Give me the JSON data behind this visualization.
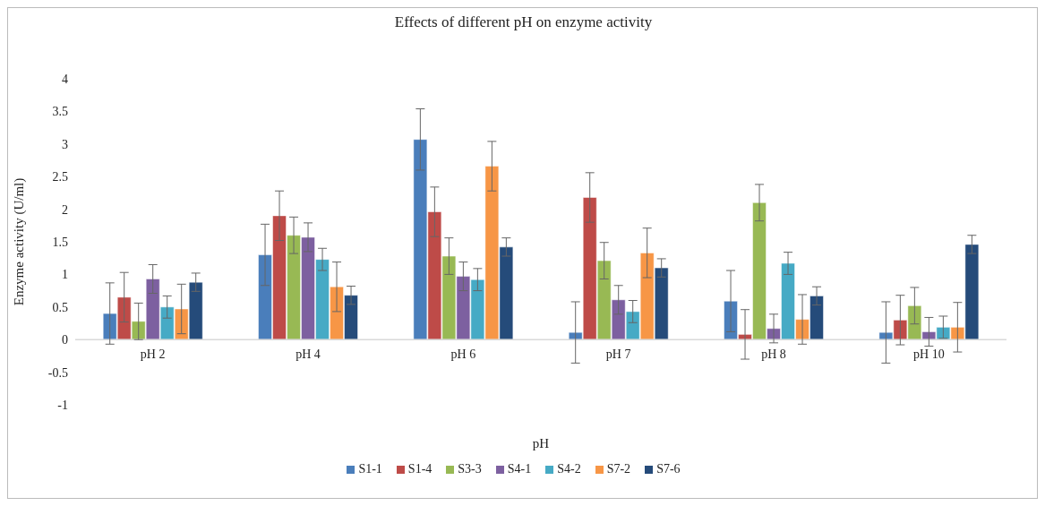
{
  "chart_data": {
    "type": "bar",
    "title": "Effects of different pH on enzyme activity",
    "xlabel": "pH",
    "ylabel": "Enzyme activity (U/ml)",
    "categories": [
      "pH 2",
      "pH 4",
      "pH 6",
      "pH 7",
      "pH 8",
      "pH 10"
    ],
    "ylim": [
      -1,
      4
    ],
    "yticks": [
      -1,
      -0.5,
      0,
      0.5,
      1,
      1.5,
      2,
      2.5,
      3,
      3.5,
      4
    ],
    "legend": "bottom",
    "series": [
      {
        "name": "S1-1",
        "color": "#4a7ebb",
        "values": [
          0.4,
          1.3,
          3.07,
          0.11,
          0.59,
          0.11
        ],
        "errors": [
          0.47,
          0.47,
          0.47,
          0.47,
          0.47,
          0.47
        ]
      },
      {
        "name": "S1-4",
        "color": "#be4b48",
        "values": [
          0.65,
          1.9,
          1.96,
          2.18,
          0.08,
          0.3
        ],
        "errors": [
          0.38,
          0.38,
          0.38,
          0.38,
          0.38,
          0.38
        ]
      },
      {
        "name": "S3-3",
        "color": "#98b954",
        "values": [
          0.28,
          1.6,
          1.28,
          1.21,
          2.1,
          0.52
        ],
        "errors": [
          0.28,
          0.28,
          0.28,
          0.28,
          0.28,
          0.28
        ]
      },
      {
        "name": "S4-1",
        "color": "#7d60a0",
        "values": [
          0.93,
          1.57,
          0.97,
          0.61,
          0.17,
          0.12
        ],
        "errors": [
          0.22,
          0.22,
          0.22,
          0.22,
          0.22,
          0.22
        ]
      },
      {
        "name": "S4-2",
        "color": "#46aac5",
        "values": [
          0.5,
          1.23,
          0.92,
          0.43,
          1.17,
          0.19
        ],
        "errors": [
          0.17,
          0.17,
          0.17,
          0.17,
          0.17,
          0.17
        ]
      },
      {
        "name": "S7-2",
        "color": "#f79646",
        "values": [
          0.47,
          0.81,
          2.66,
          1.33,
          0.31,
          0.19
        ],
        "errors": [
          0.38,
          0.38,
          0.38,
          0.38,
          0.38,
          0.38
        ]
      },
      {
        "name": "S7-6",
        "color": "#254b7a",
        "values": [
          0.88,
          0.68,
          1.42,
          1.1,
          0.67,
          1.46
        ],
        "errors": [
          0.14,
          0.14,
          0.14,
          0.14,
          0.14,
          0.14
        ]
      }
    ]
  }
}
